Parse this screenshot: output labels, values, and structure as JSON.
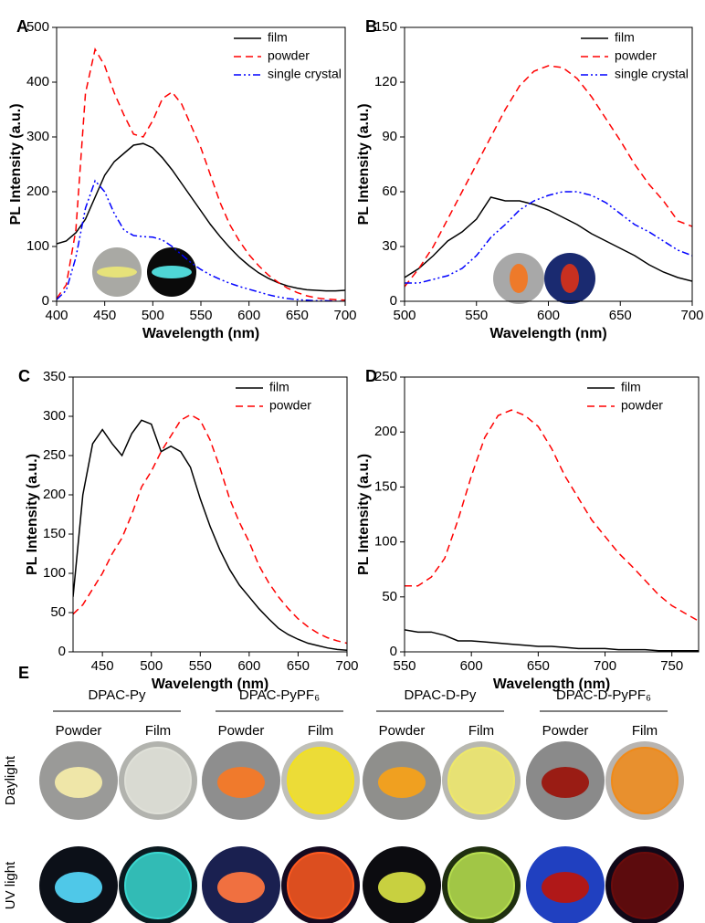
{
  "chart_data": [
    {
      "type": "line",
      "label": "A",
      "xlabel": "Wavelength (nm)",
      "ylabel": "PL Intensity (a.u.)",
      "x": [
        400,
        410,
        420,
        430,
        440,
        450,
        460,
        470,
        480,
        490,
        500,
        510,
        520,
        530,
        540,
        550,
        560,
        570,
        580,
        590,
        600,
        610,
        620,
        630,
        640,
        650,
        660,
        670,
        680,
        690,
        700
      ],
      "series": [
        {
          "name": "film",
          "color": "#000000",
          "dash": "solid",
          "values": [
            105,
            110,
            125,
            150,
            190,
            230,
            255,
            270,
            285,
            288,
            280,
            262,
            240,
            215,
            190,
            165,
            140,
            118,
            98,
            80,
            65,
            52,
            42,
            34,
            28,
            24,
            21,
            20,
            19,
            19,
            20
          ]
        },
        {
          "name": "powder",
          "color": "#ff0000",
          "dash": "dashed",
          "values": [
            5,
            30,
            130,
            380,
            460,
            430,
            380,
            340,
            305,
            300,
            330,
            370,
            382,
            360,
            320,
            280,
            230,
            180,
            140,
            110,
            85,
            65,
            48,
            35,
            24,
            16,
            10,
            6,
            4,
            3,
            2
          ]
        },
        {
          "name": "single crystal",
          "color": "#0000ff",
          "dash": "dashdot",
          "values": [
            3,
            20,
            80,
            170,
            220,
            200,
            160,
            130,
            120,
            118,
            117,
            112,
            100,
            85,
            70,
            58,
            48,
            40,
            33,
            27,
            22,
            17,
            12,
            8,
            5,
            3,
            2,
            1,
            1,
            0,
            0
          ]
        }
      ],
      "xlim": [
        400,
        700
      ],
      "xticks": [
        400,
        450,
        500,
        550,
        600,
        650,
        700
      ],
      "ylim": [
        0,
        500
      ],
      "yticks": [
        0,
        100,
        200,
        300,
        400,
        500
      ],
      "legend": "upper right"
    },
    {
      "type": "line",
      "label": "B",
      "xlabel": "Wavelength (nm)",
      "ylabel": "PL Intensity (a.u.)",
      "x": [
        500,
        510,
        520,
        530,
        540,
        550,
        560,
        570,
        580,
        590,
        600,
        610,
        620,
        630,
        640,
        650,
        660,
        670,
        680,
        690,
        700
      ],
      "series": [
        {
          "name": "film",
          "color": "#000000",
          "dash": "solid",
          "values": [
            13,
            18,
            25,
            33,
            38,
            45,
            57,
            55,
            55,
            53,
            50,
            46,
            42,
            37,
            33,
            29,
            25,
            20,
            16,
            13,
            11
          ]
        },
        {
          "name": "powder",
          "color": "#ff0000",
          "dash": "dashed",
          "values": [
            8,
            18,
            30,
            45,
            60,
            75,
            90,
            105,
            118,
            126,
            129,
            128,
            122,
            112,
            100,
            88,
            75,
            64,
            55,
            44,
            41
          ]
        },
        {
          "name": "single crystal",
          "color": "#0000ff",
          "dash": "dashdot",
          "values": [
            10,
            10,
            12,
            14,
            18,
            25,
            35,
            42,
            50,
            55,
            58,
            60,
            60,
            58,
            54,
            48,
            42,
            38,
            33,
            28,
            25
          ]
        }
      ],
      "xlim": [
        500,
        700
      ],
      "xticks": [
        500,
        550,
        600,
        650,
        700
      ],
      "ylim": [
        0,
        150
      ],
      "yticks": [
        0,
        30,
        60,
        90,
        120,
        150
      ],
      "legend": "upper right"
    },
    {
      "type": "line",
      "label": "C",
      "xlabel": "Wavelength (nm)",
      "ylabel": "PL Intensity (a.u.)",
      "x": [
        420,
        430,
        440,
        450,
        460,
        470,
        480,
        490,
        500,
        510,
        520,
        530,
        540,
        550,
        560,
        570,
        580,
        590,
        600,
        610,
        620,
        630,
        640,
        650,
        660,
        670,
        680,
        690,
        700
      ],
      "series": [
        {
          "name": "film",
          "color": "#000000",
          "dash": "solid",
          "values": [
            70,
            200,
            265,
            283,
            265,
            250,
            278,
            295,
            290,
            255,
            262,
            255,
            235,
            195,
            160,
            130,
            105,
            85,
            70,
            55,
            42,
            30,
            22,
            16,
            11,
            8,
            5,
            3,
            2
          ]
        },
        {
          "name": "powder",
          "color": "#ff0000",
          "dash": "dashed",
          "values": [
            48,
            60,
            80,
            100,
            125,
            145,
            175,
            210,
            230,
            255,
            275,
            295,
            302,
            295,
            270,
            235,
            195,
            165,
            140,
            110,
            88,
            70,
            55,
            42,
            32,
            24,
            18,
            14,
            11
          ]
        }
      ],
      "xlim": [
        420,
        700
      ],
      "xticks": [
        450,
        500,
        550,
        600,
        650,
        700
      ],
      "ylim": [
        0,
        350
      ],
      "yticks": [
        0,
        50,
        100,
        150,
        200,
        250,
        300,
        350
      ],
      "legend": "upper right"
    },
    {
      "type": "line",
      "label": "D",
      "xlabel": "Wavelength (nm)",
      "ylabel": "PL Intensity (a.u.)",
      "x": [
        550,
        560,
        570,
        580,
        590,
        600,
        610,
        620,
        630,
        640,
        650,
        660,
        670,
        680,
        690,
        700,
        710,
        720,
        730,
        740,
        750,
        760,
        770
      ],
      "series": [
        {
          "name": "film",
          "color": "#000000",
          "dash": "solid",
          "values": [
            20,
            18,
            18,
            15,
            10,
            10,
            9,
            8,
            7,
            6,
            5,
            5,
            4,
            3,
            3,
            3,
            2,
            2,
            2,
            1,
            1,
            1,
            1
          ]
        },
        {
          "name": "powder",
          "color": "#ff0000",
          "dash": "dashed",
          "values": [
            60,
            60,
            68,
            85,
            120,
            160,
            195,
            215,
            220,
            215,
            205,
            185,
            160,
            140,
            120,
            105,
            90,
            78,
            65,
            52,
            42,
            35,
            28
          ]
        }
      ],
      "xlim": [
        550,
        770
      ],
      "xticks": [
        550,
        600,
        650,
        700,
        750
      ],
      "ylim": [
        0,
        250
      ],
      "yticks": [
        0,
        50,
        100,
        150,
        200,
        250
      ],
      "legend": "upper right"
    }
  ],
  "panel_e": {
    "label": "E",
    "columns": [
      {
        "name": "DPAC-Py",
        "subs": [
          "Powder",
          "Film"
        ]
      },
      {
        "name": "DPAC-PyPF₆",
        "subs": [
          "Powder",
          "Film"
        ]
      },
      {
        "name": "DPAC-D-Py",
        "subs": [
          "Powder",
          "Film"
        ]
      },
      {
        "name": "DPAC-D-PyPF₆",
        "subs": [
          "Powder",
          "Film"
        ]
      }
    ],
    "rows": [
      "Daylight",
      "UV light"
    ]
  }
}
